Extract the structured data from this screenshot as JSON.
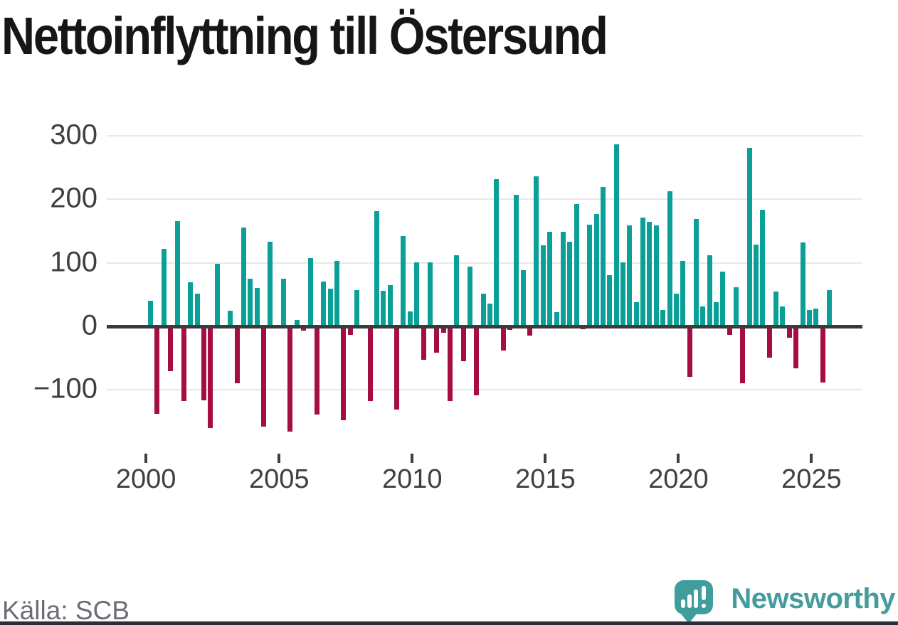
{
  "title": "Nettoinflyttning till Östersund",
  "source": {
    "text": "Källa: SCB"
  },
  "branding": {
    "name": "Newsworthy",
    "icon": "newsworthy-speech-bubble-chart-logo"
  },
  "colors": {
    "positive_bar": "#0a9f97",
    "negative_bar": "#a50d43",
    "zero_line": "#3b3b3b",
    "gridline": "#e8e8e8",
    "axis_text": "#3f3f3f",
    "source_text": "#6d6d76",
    "brand_teal": "#3f9d9b",
    "footer_bar": "#2e2e38"
  },
  "chart_data": {
    "type": "bar",
    "title": "Nettoinflyttning till Östersund",
    "xlabel": "",
    "ylabel": "",
    "frequency": "quarterly",
    "x_start": "2000Q1",
    "x_end": "2025Q3",
    "x_tick_labels": [
      "2000",
      "2005",
      "2010",
      "2015",
      "2020",
      "2025"
    ],
    "y_ticks": [
      300,
      200,
      100,
      0,
      -100
    ],
    "y_tick_labels": [
      "300",
      "200",
      "100",
      "0",
      "−100"
    ],
    "ylim": [
      -180,
      320
    ],
    "grid": true,
    "legend": "none",
    "series_note": "positive values teal, negative values crimson",
    "values": [
      40,
      -138,
      122,
      -70,
      166,
      -117,
      69,
      51,
      -116,
      -160,
      98,
      0,
      25,
      -89,
      155,
      75,
      60,
      -158,
      133,
      0,
      75,
      -165,
      10,
      -7,
      107,
      -139,
      70,
      59,
      103,
      -148,
      -13,
      57,
      0,
      -118,
      181,
      56,
      65,
      -131,
      142,
      23,
      101,
      -53,
      101,
      -41,
      -10,
      -117,
      112,
      -55,
      94,
      -109,
      51,
      36,
      232,
      -38,
      -6,
      207,
      88,
      -15,
      236,
      128,
      149,
      22,
      149,
      133,
      192,
      -4,
      160,
      177,
      219,
      81,
      286,
      101,
      159,
      38,
      171,
      164,
      159,
      26,
      213,
      51,
      103,
      -79,
      169,
      31,
      112,
      38,
      86,
      -13,
      61,
      -89,
      281,
      129,
      184,
      -49,
      55,
      31,
      -18,
      -66,
      132,
      26,
      28,
      -88,
      57
    ]
  }
}
